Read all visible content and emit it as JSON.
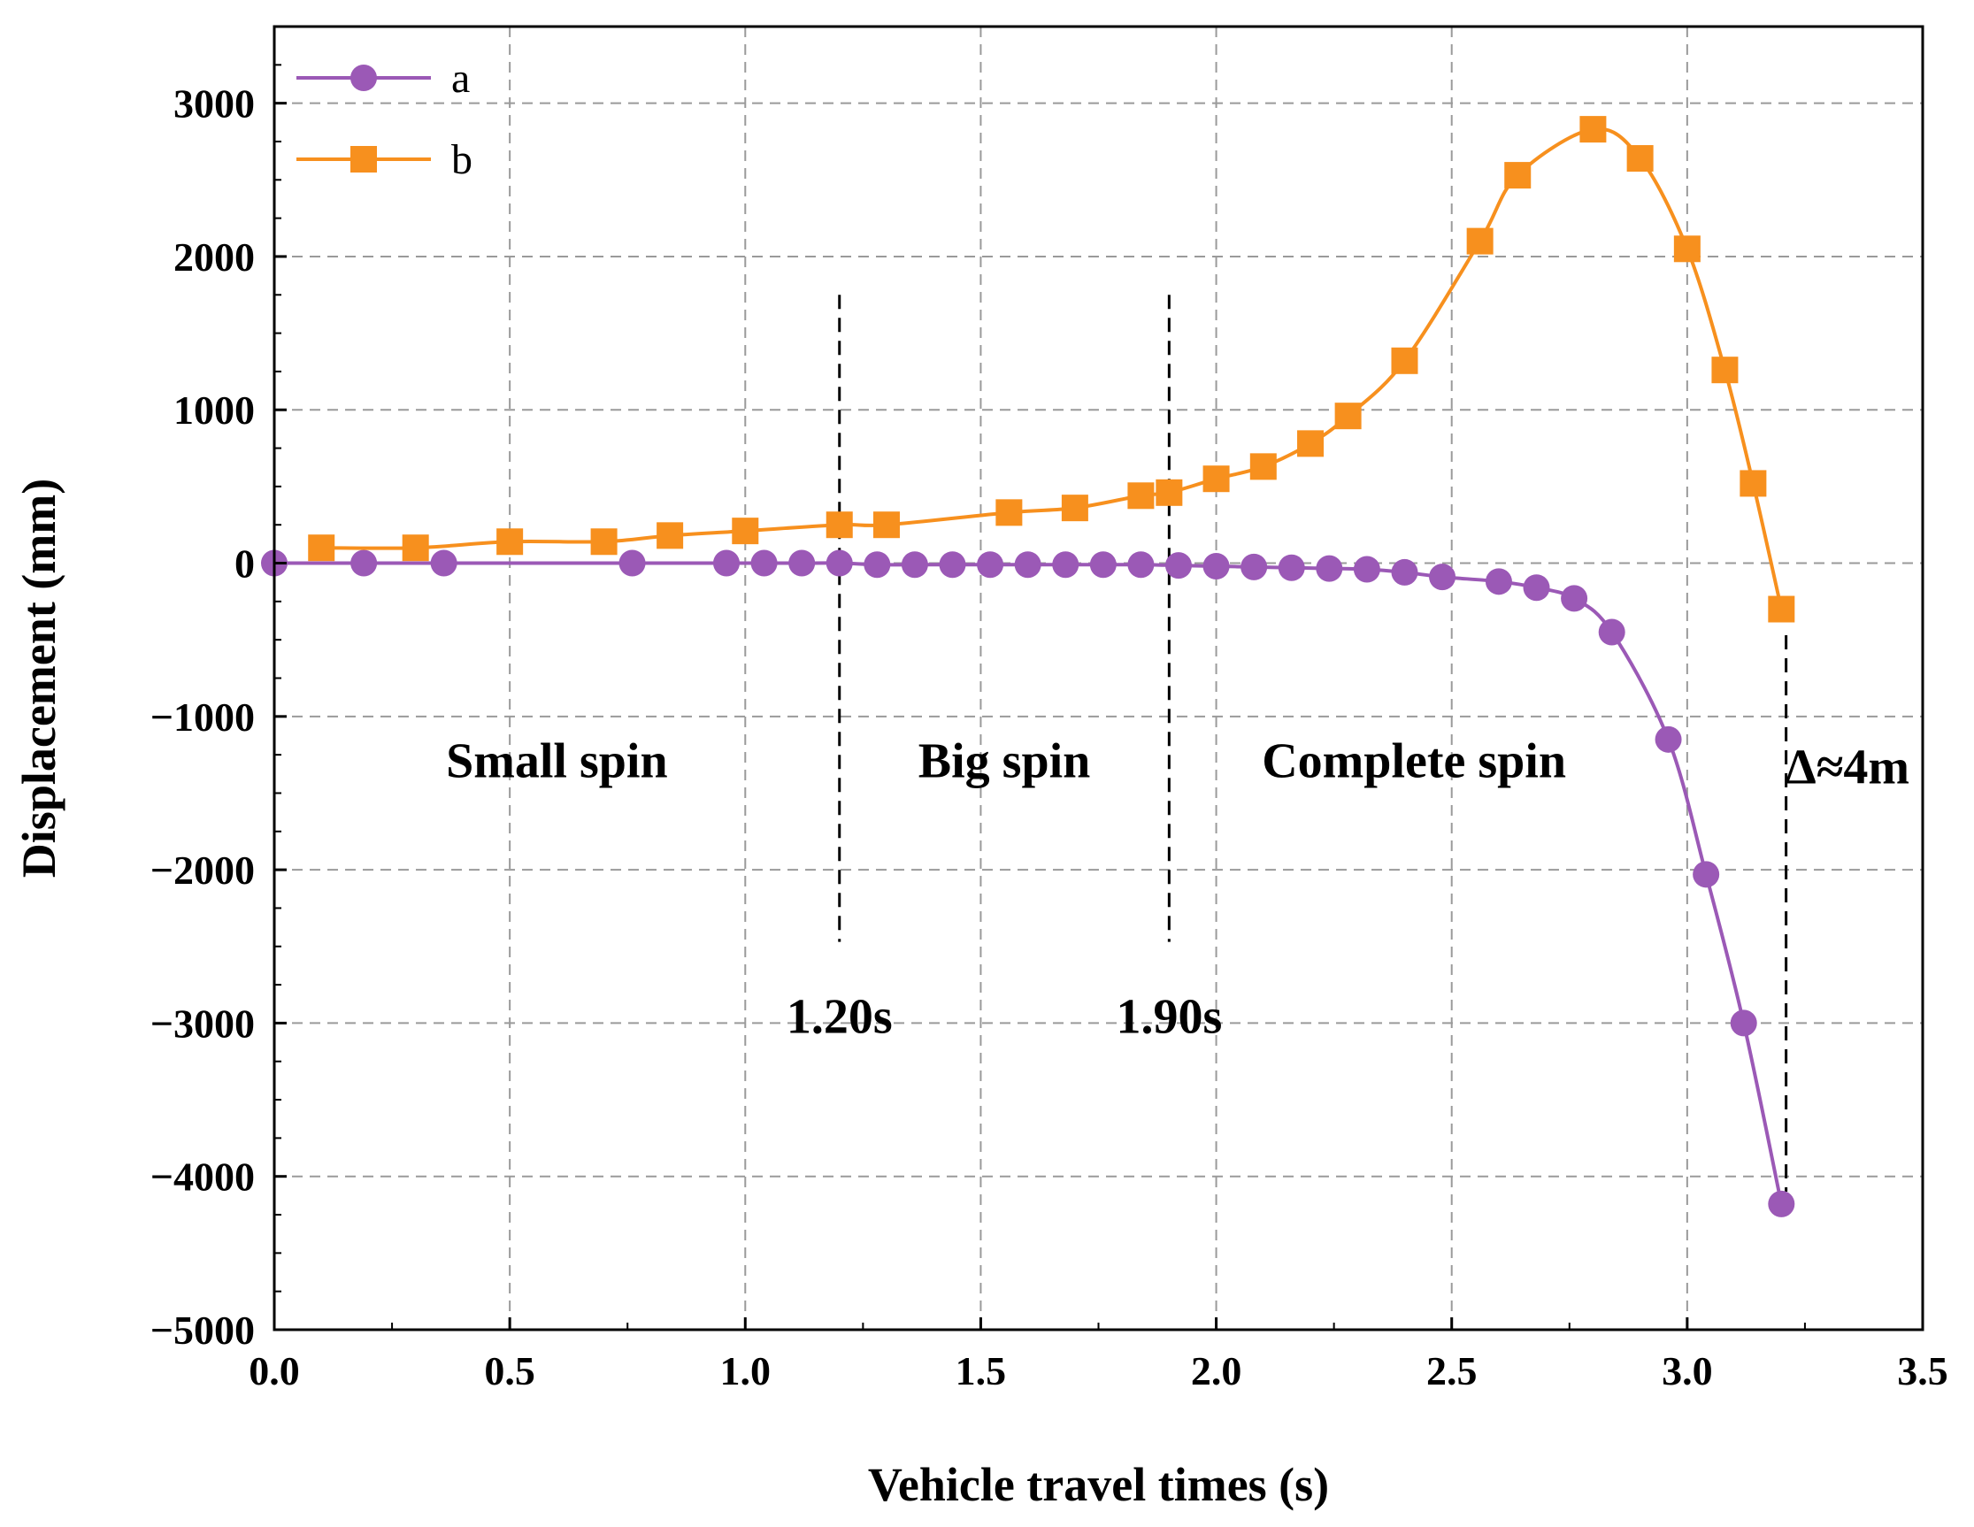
{
  "chart_data": {
    "type": "line",
    "xlabel": "Vehicle travel times (s)",
    "ylabel": "Displacement (mm)",
    "xlim": [
      0,
      3.5
    ],
    "ylim": [
      -5000,
      3500
    ],
    "xticks": [
      0.0,
      0.5,
      1.0,
      1.5,
      2.0,
      2.5,
      3.0,
      3.5
    ],
    "xtick_labels": [
      "0.0",
      "0.5",
      "1.0",
      "1.5",
      "2.0",
      "2.5",
      "3.0",
      "3.5"
    ],
    "yticks": [
      -5000,
      -4000,
      -3000,
      -2000,
      -1000,
      0,
      1000,
      2000,
      3000
    ],
    "ytick_labels": [
      "−5000",
      "−4000",
      "−3000",
      "−2000",
      "−1000",
      "0",
      "1000",
      "2000",
      "3000"
    ],
    "grid": true,
    "legend_position": "top-left",
    "series": [
      {
        "name": "a",
        "marker": "circle",
        "color": "#9B59B6",
        "x": [
          0.0,
          0.19,
          0.36,
          0.76,
          0.96,
          1.04,
          1.12,
          1.2,
          1.28,
          1.36,
          1.44,
          1.52,
          1.6,
          1.68,
          1.76,
          1.84,
          1.92,
          2.0,
          2.08,
          2.16,
          2.24,
          2.32,
          2.4,
          2.48,
          2.6,
          2.68,
          2.76,
          2.84,
          2.96,
          3.04,
          3.12,
          3.2
        ],
        "y": [
          0,
          0,
          0,
          0,
          0,
          0,
          0,
          0,
          -10,
          -10,
          -10,
          -10,
          -10,
          -10,
          -10,
          -10,
          -15,
          -20,
          -25,
          -30,
          -35,
          -40,
          -60,
          -90,
          -120,
          -160,
          -230,
          -450,
          -1150,
          -2030,
          -3000,
          -4180
        ]
      },
      {
        "name": "b",
        "marker": "square",
        "color": "#F7901E",
        "x": [
          0.1,
          0.3,
          0.5,
          0.7,
          0.84,
          1.0,
          1.2,
          1.3,
          1.56,
          1.7,
          1.84,
          1.9,
          2.0,
          2.1,
          2.2,
          2.28,
          2.4,
          2.56,
          2.64,
          2.8,
          2.9,
          3.0,
          3.08,
          3.14,
          3.2
        ],
        "y": [
          100,
          100,
          140,
          140,
          180,
          210,
          250,
          250,
          330,
          360,
          440,
          460,
          550,
          630,
          780,
          960,
          1320,
          2100,
          2530,
          2830,
          2640,
          2050,
          1260,
          520,
          -300
        ]
      }
    ],
    "annotations": [
      {
        "text": "Small spin",
        "x": 0.6,
        "y": -1280
      },
      {
        "text": "Big spin",
        "x": 1.55,
        "y": -1280
      },
      {
        "text": "Complete spin",
        "x": 2.42,
        "y": -1280
      },
      {
        "text": "Δ≈4m",
        "x": 3.34,
        "y": -1320
      },
      {
        "text": "1.20s",
        "x": 1.2,
        "y": -2950
      },
      {
        "text": "1.90s",
        "x": 1.9,
        "y": -2950
      }
    ],
    "markers": [
      {
        "x": 1.2,
        "y_from": 1750,
        "y_to": -2470
      },
      {
        "x": 1.9,
        "y_from": 1750,
        "y_to": -2470
      },
      {
        "x": 3.21,
        "y_from": -470,
        "y_to": -4100
      }
    ]
  }
}
